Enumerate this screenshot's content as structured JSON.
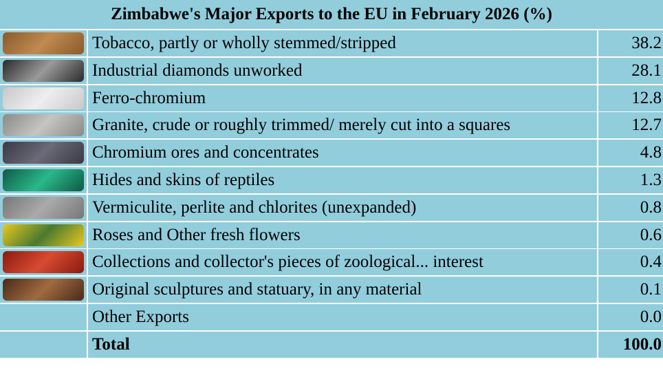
{
  "header": {
    "title": "Zimbabwe's Major Exports to the EU in February 2026 (%)"
  },
  "table": {
    "rows": [
      [
        "Tobacco, partly or wholly stemmed/stripped",
        "38.2"
      ],
      [
        "Industrial diamonds unworked",
        "28.1"
      ],
      [
        "Ferro-chromium",
        "12.8"
      ],
      [
        "Granite, crude or roughly trimmed/ merely cut into a squares",
        "12.7"
      ],
      [
        "Chromium ores and concentrates",
        "4.8"
      ],
      [
        "Hides and skins of reptiles",
        "1.3"
      ],
      [
        "Vermiculite, perlite and chlorites (unexpanded)",
        "0.8"
      ],
      [
        "Roses and Other fresh flowers",
        "0.6"
      ],
      [
        "Collections and collector's pieces of zoological... interest",
        "0.4"
      ],
      [
        "Original sculptures and statuary, in any material",
        "0.1"
      ],
      [
        "Other Exports",
        "0.0"
      ]
    ],
    "total": [
      "Total",
      "100.0"
    ]
  }
}
